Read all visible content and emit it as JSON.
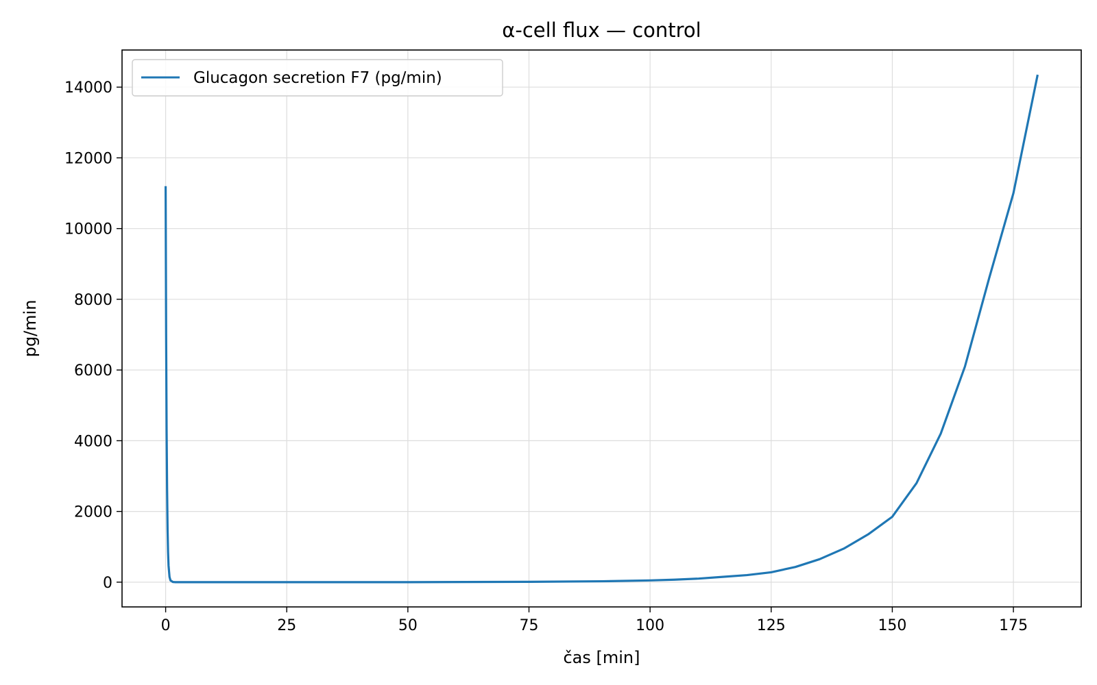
{
  "chart_data": {
    "type": "line",
    "title": "α-cell flux — control",
    "xlabel": "čas [min]",
    "ylabel": "pg/min",
    "xlim": [
      -9,
      189
    ],
    "ylim": [
      -700,
      15050
    ],
    "x_ticks": [
      0,
      25,
      50,
      75,
      100,
      125,
      150,
      175
    ],
    "y_ticks": [
      0,
      2000,
      4000,
      6000,
      8000,
      10000,
      12000,
      14000
    ],
    "grid": true,
    "legend_position": "top-left",
    "series": [
      {
        "name": "Glucagon secretion F7 (pg/min)",
        "color": "#1f77b4",
        "x": [
          0,
          0.1,
          0.2,
          0.3,
          0.4,
          0.5,
          0.6,
          0.8,
          1.0,
          1.5,
          2,
          5,
          10,
          25,
          50,
          75,
          90,
          100,
          105,
          110,
          115,
          120,
          125,
          130,
          135,
          140,
          145,
          150,
          155,
          160,
          165,
          170,
          175,
          180
        ],
        "values": [
          11200,
          7000,
          4300,
          2600,
          1500,
          850,
          470,
          150,
          50,
          5,
          0,
          0,
          0,
          0,
          0,
          10,
          25,
          50,
          70,
          100,
          150,
          200,
          280,
          430,
          650,
          950,
          1350,
          1850,
          2800,
          4200,
          6100,
          8600,
          11000,
          14350
        ]
      }
    ]
  }
}
